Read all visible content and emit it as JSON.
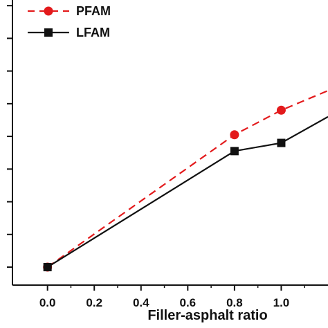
{
  "chart_data": {
    "type": "line",
    "xlabel": "Filler-asphalt ratio",
    "ylabel": "",
    "x_tick_labels": [
      "0.0",
      "0.2",
      "0.4",
      "0.6",
      "0.8",
      "1.0"
    ],
    "xlim": [
      -0.15,
      1.2
    ],
    "ylim": [
      0.45,
      9.3
    ],
    "legend_position": "top-left",
    "series": [
      {
        "name": "PFAM",
        "style": "dashed",
        "marker": "circle",
        "color": "#e31a1c",
        "x": [
          0.0,
          0.8,
          1.0,
          1.2
        ],
        "y": [
          1.0,
          5.05,
          5.8,
          6.4
        ]
      },
      {
        "name": "LFAM",
        "style": "solid",
        "marker": "square",
        "color": "#111111",
        "x": [
          0.0,
          0.8,
          1.0,
          1.2
        ],
        "y": [
          1.0,
          4.55,
          4.8,
          5.6
        ]
      }
    ]
  }
}
